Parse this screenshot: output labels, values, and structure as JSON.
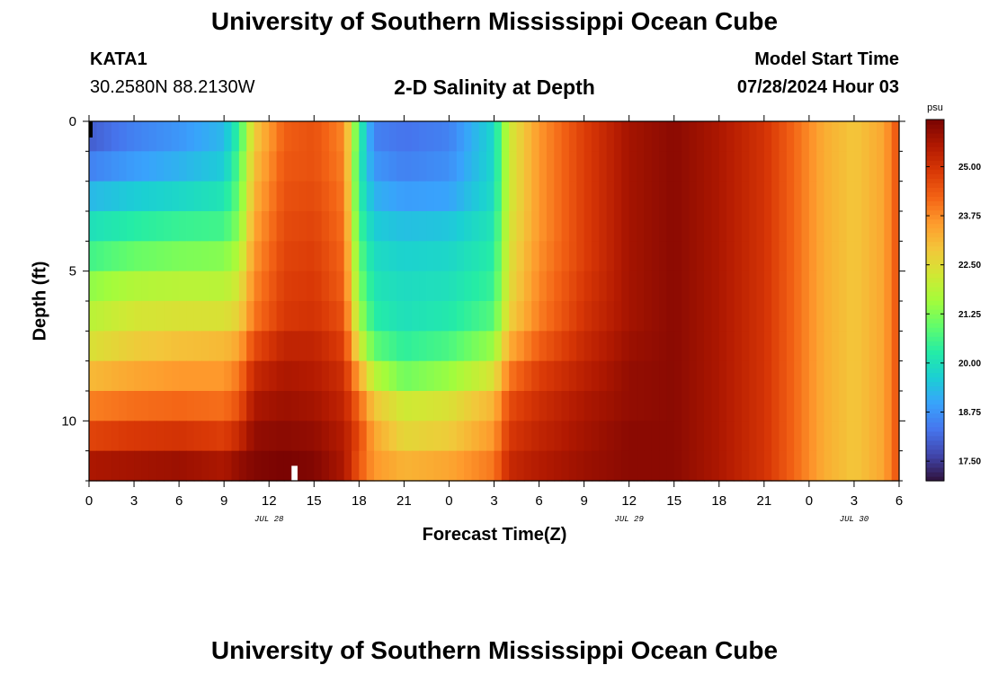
{
  "header": {
    "title": "University of Southern Mississippi Ocean Cube",
    "station": "KATA1",
    "coordinates": "30.2580N  88.2130W",
    "subtitle": "2-D Salinity at Depth",
    "model_start_label": "Model Start Time",
    "model_start_value": "07/28/2024 Hour 03"
  },
  "footer": {
    "title": "University of Southern Mississippi Ocean Cube"
  },
  "colors": {
    "colormap": [
      "#30123b",
      "#4145ab",
      "#4675ed",
      "#39a2fc",
      "#1bcfd4",
      "#24eca6",
      "#61fc6c",
      "#a4fc3b",
      "#d1e834",
      "#f3c63a",
      "#fe9b2d",
      "#f36315",
      "#d93806",
      "#b11901",
      "#7a0402"
    ],
    "missing": "#ffffff"
  },
  "chart_data": {
    "type": "heatmap",
    "title": "2-D Salinity at Depth",
    "xlabel": "Forecast Time(Z)",
    "ylabel": "Depth (ft)",
    "x_tick_labels": [
      "0",
      "3",
      "6",
      "9",
      "12",
      "15",
      "18",
      "21",
      "0",
      "3",
      "6",
      "9",
      "12",
      "15",
      "18",
      "21",
      "0",
      "3",
      "6"
    ],
    "x_range_hours": [
      0,
      54
    ],
    "date_labels": [
      {
        "label": "JUL 28",
        "hour": 12
      },
      {
        "label": "JUL 29",
        "hour": 36
      },
      {
        "label": "JUL 30",
        "hour": 51
      }
    ],
    "y_tick_labels": [
      "0",
      "5",
      "10"
    ],
    "y_ticks": [
      0,
      5,
      10
    ],
    "y_range_ft": [
      0,
      12
    ],
    "colorbar": {
      "units": "psu",
      "vmin": 17.0,
      "vmax": 26.2,
      "tick_values": [
        17.5,
        18.75,
        20.0,
        21.25,
        22.5,
        23.75,
        25.0
      ],
      "tick_labels": [
        "17.50",
        "18.75",
        "20.00",
        "21.25",
        "22.50",
        "23.75",
        "25.00"
      ]
    },
    "depth_layers_ft": [
      0.5,
      1.5,
      2.5,
      3.5,
      4.5,
      5.5,
      6.5,
      7.5,
      8.5,
      9.5,
      10.5,
      11.5
    ],
    "profile_hours": [
      0,
      3,
      6,
      9,
      10,
      11,
      13,
      15,
      17,
      18,
      19,
      21,
      24,
      27,
      28,
      30,
      33,
      36,
      39,
      42,
      45,
      47,
      49,
      51,
      53,
      54
    ],
    "salinity_psu": [
      [
        18.0,
        18.5,
        18.8,
        19.3,
        20.5,
        22.8,
        24.3,
        24.5,
        23.8,
        20.5,
        18.5,
        18.3,
        18.5,
        19.8,
        22.2,
        23.6,
        24.8,
        25.7,
        26.0,
        25.6,
        25.0,
        24.2,
        23.3,
        22.9,
        23.4,
        24.6
      ],
      [
        18.5,
        18.9,
        19.2,
        19.6,
        20.8,
        23.0,
        24.4,
        24.5,
        23.9,
        20.3,
        18.8,
        18.5,
        18.7,
        19.8,
        22.2,
        23.6,
        24.8,
        25.7,
        26.0,
        25.6,
        25.0,
        24.2,
        23.3,
        22.9,
        23.4,
        24.6
      ],
      [
        19.3,
        19.6,
        19.8,
        20.1,
        21.0,
        23.2,
        24.5,
        24.6,
        24.0,
        20.4,
        19.2,
        18.9,
        19.0,
        19.9,
        22.2,
        23.6,
        24.8,
        25.7,
        26.0,
        25.6,
        25.0,
        24.2,
        23.3,
        22.9,
        23.4,
        24.6
      ],
      [
        20.0,
        20.3,
        20.5,
        20.6,
        21.3,
        23.4,
        24.6,
        24.7,
        24.1,
        20.6,
        19.6,
        19.4,
        19.5,
        20.1,
        22.3,
        23.6,
        24.8,
        25.7,
        26.0,
        25.6,
        25.0,
        24.2,
        23.3,
        22.9,
        23.4,
        24.6
      ],
      [
        20.6,
        21.0,
        21.2,
        21.3,
        21.8,
        23.6,
        24.7,
        24.8,
        24.2,
        20.9,
        19.9,
        19.7,
        19.8,
        20.3,
        22.4,
        23.7,
        24.8,
        25.7,
        26.0,
        25.6,
        25.0,
        24.2,
        23.3,
        22.9,
        23.4,
        24.6
      ],
      [
        21.4,
        21.8,
        21.9,
        21.9,
        22.3,
        23.8,
        24.8,
        24.9,
        24.3,
        21.2,
        20.1,
        19.9,
        20.0,
        20.5,
        22.5,
        23.8,
        24.9,
        25.7,
        26.0,
        25.6,
        25.0,
        24.2,
        23.3,
        22.9,
        23.4,
        24.6
      ],
      [
        21.9,
        22.3,
        22.4,
        22.4,
        22.7,
        24.0,
        24.9,
        25.0,
        24.5,
        21.6,
        20.3,
        20.0,
        20.2,
        20.8,
        22.7,
        23.9,
        25.0,
        25.7,
        26.0,
        25.6,
        25.0,
        24.2,
        23.3,
        22.9,
        23.4,
        24.6
      ],
      [
        22.4,
        22.8,
        23.0,
        23.1,
        23.4,
        24.6,
        25.3,
        25.3,
        24.8,
        22.3,
        20.9,
        20.4,
        20.7,
        21.5,
        23.3,
        24.3,
        25.2,
        25.8,
        26.0,
        25.6,
        25.0,
        24.2,
        23.3,
        22.9,
        23.4,
        24.6
      ],
      [
        23.1,
        23.4,
        23.6,
        23.6,
        24.0,
        25.2,
        25.6,
        25.5,
        25.1,
        23.4,
        21.9,
        21.1,
        21.5,
        22.4,
        24.0,
        24.8,
        25.4,
        25.9,
        26.0,
        25.6,
        25.0,
        24.2,
        23.3,
        22.9,
        23.4,
        24.6
      ],
      [
        23.9,
        24.1,
        24.2,
        24.1,
        24.5,
        25.6,
        25.8,
        25.7,
        25.3,
        24.2,
        22.9,
        22.2,
        22.4,
        23.2,
        24.6,
        25.1,
        25.6,
        25.9,
        26.0,
        25.6,
        25.0,
        24.2,
        23.3,
        22.9,
        23.4,
        24.6
      ],
      [
        24.7,
        24.9,
        25.0,
        24.8,
        25.2,
        25.9,
        26.0,
        25.9,
        25.5,
        24.6,
        23.4,
        22.6,
        22.8,
        23.6,
        24.9,
        25.3,
        25.7,
        26.0,
        26.0,
        25.6,
        25.0,
        24.2,
        23.3,
        22.9,
        23.4,
        24.6
      ],
      [
        25.6,
        25.7,
        25.8,
        25.6,
        25.9,
        26.1,
        26.2,
        26.1,
        25.6,
        24.4,
        23.6,
        23.2,
        23.4,
        24.0,
        25.2,
        25.5,
        25.8,
        26.0,
        26.0,
        25.6,
        25.0,
        24.2,
        23.3,
        22.9,
        23.4,
        24.6
      ]
    ],
    "missing_cells": [
      {
        "hour_range": [
          13.5,
          13.9
        ],
        "depth_range": [
          11.5,
          12.0
        ]
      }
    ]
  }
}
